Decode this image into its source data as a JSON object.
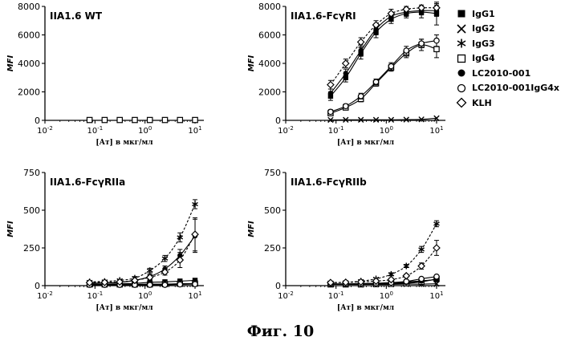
{
  "figure_caption": "Фиг. 10",
  "legend": [
    {
      "label": "IgG1",
      "marker": "square-filled"
    },
    {
      "label": "IgG2",
      "marker": "cross"
    },
    {
      "label": "IgG3",
      "marker": "asterisk"
    },
    {
      "label": "IgG4",
      "marker": "square-open"
    },
    {
      "label": "LC2010-001",
      "marker": "circle-filled"
    },
    {
      "label": "LC2010-001IgG4x",
      "marker": "circle-open"
    },
    {
      "label": "KLH",
      "marker": "diamond-open"
    }
  ],
  "chart_data": [
    {
      "type": "scatter",
      "title": "IIA1.6 WT",
      "xlabel": "[Ат] в мкг/мл",
      "ylabel": "MFI",
      "xscale": "log",
      "xlim": [
        0.01,
        15
      ],
      "ylim": [
        0,
        8000
      ],
      "yticks": [
        0,
        2000,
        4000,
        6000,
        8000
      ],
      "xtick_labels": [
        "10-2",
        "10-1",
        "100",
        "101"
      ],
      "x": [
        0.078,
        0.156,
        0.3125,
        0.625,
        1.25,
        2.5,
        5,
        10
      ],
      "series": [
        {
          "name": "IgG1",
          "values": [
            30,
            30,
            30,
            30,
            30,
            30,
            30,
            30
          ]
        },
        {
          "name": "IgG2",
          "values": [
            20,
            20,
            20,
            20,
            20,
            20,
            20,
            20
          ]
        },
        {
          "name": "IgG4",
          "values": [
            25,
            25,
            25,
            25,
            25,
            25,
            25,
            25
          ]
        }
      ]
    },
    {
      "type": "line",
      "title": "IIA1.6-FcγRI",
      "xlabel": "[Ат] в мкг/мл",
      "ylabel": "MFI",
      "xscale": "log",
      "xlim": [
        0.01,
        15
      ],
      "ylim": [
        0,
        8000
      ],
      "yticks": [
        0,
        2000,
        4000,
        6000,
        8000
      ],
      "xtick_labels": [
        "10-2",
        "10-1",
        "100",
        "101"
      ],
      "x": [
        0.078,
        0.156,
        0.3125,
        0.625,
        1.25,
        2.5,
        5,
        10
      ],
      "series": [
        {
          "name": "IgG1",
          "values": [
            1700,
            3000,
            4700,
            6200,
            7100,
            7500,
            7600,
            7500
          ],
          "error": [
            300,
            300,
            400,
            400,
            300,
            300,
            400,
            800
          ]
        },
        {
          "name": "IgG2",
          "values": [
            30,
            40,
            40,
            40,
            40,
            50,
            70,
            150
          ]
        },
        {
          "name": "IgG4",
          "values": [
            500,
            900,
            1500,
            2600,
            3700,
            4700,
            5300,
            5000
          ],
          "error": [
            150,
            150,
            200,
            200,
            250,
            300,
            400,
            600
          ]
        },
        {
          "name": "LC2010-001",
          "values": [
            1900,
            3300,
            4900,
            6400,
            7300,
            7600,
            7700,
            7700
          ],
          "error": [
            300,
            300,
            400,
            400,
            300,
            300,
            300,
            400
          ]
        },
        {
          "name": "LC2010-001IgG4x",
          "values": [
            600,
            1000,
            1700,
            2700,
            3800,
            4900,
            5400,
            5600
          ],
          "error": [
            150,
            150,
            200,
            200,
            250,
            300,
            300,
            400
          ]
        },
        {
          "name": "KLH",
          "values": [
            2500,
            4000,
            5500,
            6700,
            7500,
            7800,
            7900,
            7900
          ],
          "error": [
            300,
            300,
            300,
            300,
            300,
            200,
            200,
            300
          ]
        }
      ]
    },
    {
      "type": "line",
      "title": "IIA1.6-FcγRIIa",
      "xlabel": "[Ат] в мкг/мл",
      "ylabel": "MFI",
      "xscale": "log",
      "xlim": [
        0.01,
        15
      ],
      "ylim": [
        0,
        750
      ],
      "yticks": [
        0,
        250,
        500,
        750
      ],
      "xtick_labels": [
        "10-2",
        "10-1",
        "100",
        "101"
      ],
      "x": [
        0.078,
        0.156,
        0.3125,
        0.625,
        1.25,
        2.5,
        5,
        10
      ],
      "series": [
        {
          "name": "IgG1",
          "values": [
            10,
            10,
            12,
            15,
            22,
            25,
            30,
            35
          ]
        },
        {
          "name": "IgG2",
          "values": [
            8,
            8,
            8,
            8,
            10,
            10,
            12,
            12
          ]
        },
        {
          "name": "IgG3",
          "values": [
            25,
            28,
            35,
            50,
            100,
            180,
            320,
            540
          ],
          "error": [
            5,
            5,
            5,
            10,
            15,
            20,
            30,
            30
          ]
        },
        {
          "name": "IgG4",
          "values": [
            8,
            8,
            8,
            8,
            8,
            10,
            12,
            14
          ]
        },
        {
          "name": "LC2010-001",
          "values": [
            15,
            18,
            22,
            35,
            60,
            110,
            200,
            330
          ],
          "error": [
            5,
            5,
            5,
            10,
            15,
            20,
            40,
            110
          ]
        },
        {
          "name": "LC2010-001IgG4x",
          "values": [
            5,
            5,
            5,
            5,
            5,
            5,
            8,
            10
          ]
        },
        {
          "name": "KLH",
          "values": [
            20,
            22,
            25,
            35,
            55,
            90,
            170,
            340
          ],
          "error": [
            5,
            5,
            5,
            10,
            15,
            20,
            50,
            110
          ]
        }
      ]
    },
    {
      "type": "line",
      "title": "IIA1.6-FcγRIIb",
      "xlabel": "[Ат] в мкг/мл",
      "ylabel": "MFI",
      "xscale": "log",
      "xlim": [
        0.01,
        15
      ],
      "ylim": [
        0,
        750
      ],
      "yticks": [
        0,
        250,
        500,
        750
      ],
      "xtick_labels": [
        "10-2",
        "10-1",
        "100",
        "101"
      ],
      "x": [
        0.078,
        0.156,
        0.3125,
        0.625,
        1.25,
        2.5,
        5,
        10
      ],
      "series": [
        {
          "name": "IgG1",
          "values": [
            10,
            10,
            12,
            14,
            18,
            24,
            32,
            40
          ]
        },
        {
          "name": "IgG2",
          "values": [
            8,
            8,
            8,
            8,
            8,
            10,
            10,
            12
          ]
        },
        {
          "name": "IgG3",
          "values": [
            20,
            22,
            30,
            45,
            75,
            130,
            240,
            410
          ],
          "error": [
            5,
            5,
            5,
            5,
            10,
            10,
            20,
            20
          ]
        },
        {
          "name": "IgG4",
          "values": [
            8,
            8,
            8,
            10,
            12,
            15,
            25,
            45
          ],
          "error": [
            3,
            3,
            3,
            3,
            5,
            5,
            10,
            20
          ]
        },
        {
          "name": "LC2010-001",
          "values": [
            10,
            10,
            12,
            14,
            16,
            20,
            30,
            40
          ]
        },
        {
          "name": "LC2010-001IgG4x",
          "values": [
            12,
            12,
            14,
            16,
            20,
            28,
            45,
            60
          ]
        },
        {
          "name": "KLH",
          "values": [
            20,
            22,
            25,
            30,
            40,
            65,
            130,
            250
          ],
          "error": [
            5,
            5,
            5,
            5,
            10,
            10,
            20,
            50
          ]
        }
      ]
    }
  ]
}
